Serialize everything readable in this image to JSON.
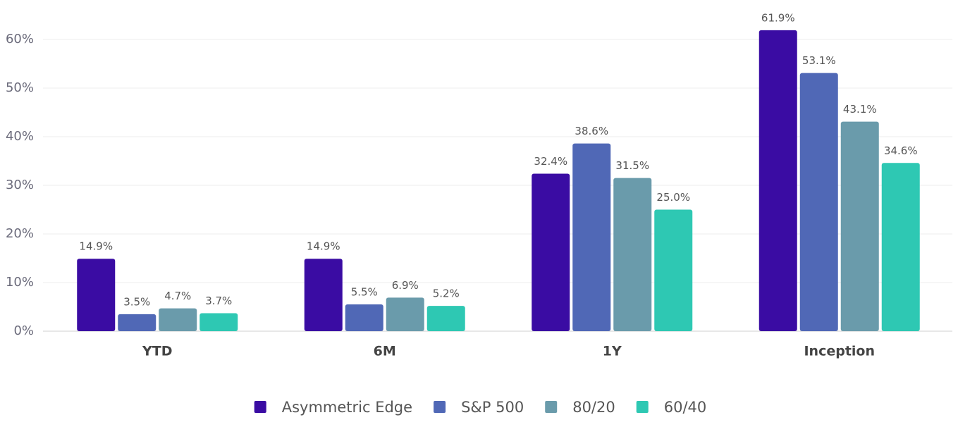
{
  "chart_data": {
    "type": "bar",
    "categories": [
      "YTD",
      "6M",
      "1Y",
      "Inception"
    ],
    "series": [
      {
        "name": "Asymmetric Edge",
        "color": "#3a0ca3",
        "values": [
          14.9,
          14.9,
          32.4,
          61.9
        ],
        "value_labels": [
          "14.9%",
          "14.9%",
          "32.4%",
          "61.9%"
        ]
      },
      {
        "name": "S&P 500",
        "color": "#5068b6",
        "values": [
          3.5,
          5.5,
          38.6,
          53.1
        ],
        "value_labels": [
          "3.5%",
          "5.5%",
          "38.6%",
          "53.1%"
        ]
      },
      {
        "name": "80/20",
        "color": "#6a9bab",
        "values": [
          4.7,
          6.9,
          31.5,
          43.1
        ],
        "value_labels": [
          "4.7%",
          "6.9%",
          "31.5%",
          "43.1%"
        ]
      },
      {
        "name": "60/40",
        "color": "#2ec8b3",
        "values": [
          3.7,
          5.2,
          25.0,
          34.6
        ],
        "value_labels": [
          "3.7%",
          "5.2%",
          "25.0%",
          "34.6%"
        ]
      }
    ],
    "ylim": [
      0,
      65
    ],
    "yticks": [
      {
        "value": 0,
        "label": "0%"
      },
      {
        "value": 10,
        "label": "10%"
      },
      {
        "value": 20,
        "label": "20%"
      },
      {
        "value": 30,
        "label": "30%"
      },
      {
        "value": 40,
        "label": "40%"
      },
      {
        "value": 50,
        "label": "50%"
      },
      {
        "value": 60,
        "label": "60%"
      }
    ],
    "grid": true,
    "legend": "bottom"
  }
}
